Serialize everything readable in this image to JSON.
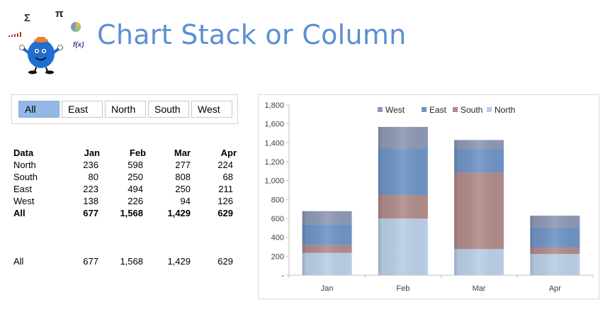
{
  "header": {
    "title": "Chart Stack or Column",
    "logo_symbols": {
      "sigma": "Σ",
      "pi": "π",
      "fx": "f(x)"
    }
  },
  "filters": {
    "buttons": [
      "All",
      "East",
      "North",
      "South",
      "West"
    ],
    "selected": "All",
    "active_color": "#93b7e6"
  },
  "table": {
    "headers": [
      "Data",
      "Jan",
      "Feb",
      "Mar",
      "Apr"
    ],
    "rows": [
      [
        "North",
        "236",
        "598",
        "277",
        "224"
      ],
      [
        "South",
        "80",
        "250",
        "808",
        "68"
      ],
      [
        "East",
        "223",
        "494",
        "250",
        "211"
      ],
      [
        "West",
        "138",
        "226",
        "94",
        "126"
      ]
    ],
    "total": [
      "All",
      "677",
      "1,568",
      "1,429",
      "629"
    ],
    "summary": [
      "All",
      "677",
      "1,568",
      "1,429",
      "629"
    ]
  },
  "chart_data": {
    "type": "bar",
    "stacked": true,
    "categories": [
      "Jan",
      "Feb",
      "Mar",
      "Apr"
    ],
    "series": [
      {
        "name": "North",
        "values": [
          236,
          598,
          277,
          224
        ],
        "color": "#b9cde5"
      },
      {
        "name": "South",
        "values": [
          80,
          250,
          808,
          68
        ],
        "color": "#b08a88"
      },
      {
        "name": "East",
        "values": [
          223,
          494,
          250,
          211
        ],
        "color": "#6e93c4"
      },
      {
        "name": "West",
        "values": [
          138,
          226,
          94,
          126
        ],
        "color": "#8c98b3"
      }
    ],
    "legend_order": [
      "West",
      "East",
      "South",
      "North"
    ],
    "legend_position": "top",
    "ylim": [
      0,
      1800
    ],
    "yticks": [
      0,
      200,
      400,
      600,
      800,
      1000,
      1200,
      1400,
      1600,
      1800
    ],
    "ytick_labels": [
      "-",
      "200",
      "400",
      "600",
      "800",
      "1,000",
      "1,200",
      "1,400",
      "1,600",
      "1,800"
    ],
    "grid": false
  }
}
